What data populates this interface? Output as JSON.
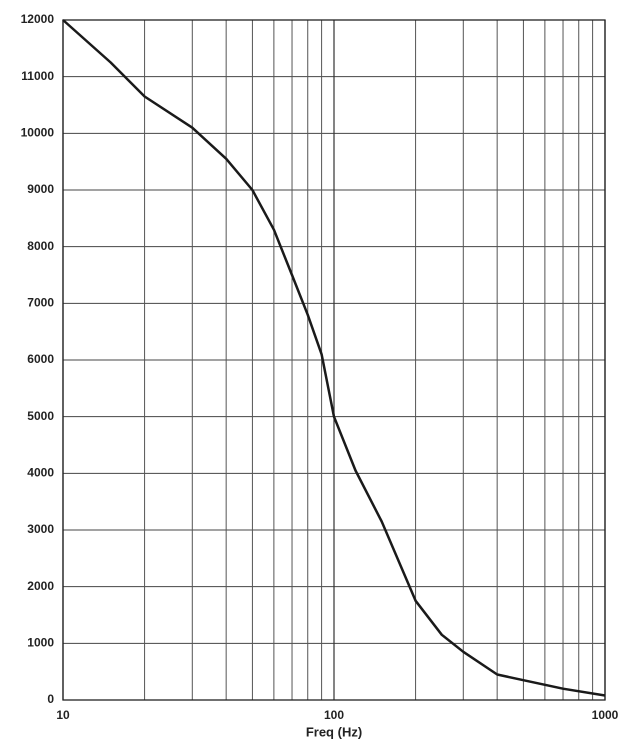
{
  "chart_data": {
    "type": "line",
    "xlabel": "Freq (Hz)",
    "x": [
      10,
      15,
      20,
      30,
      40,
      50,
      60,
      70,
      80,
      90,
      100,
      120,
      150,
      200,
      250,
      300,
      400,
      500,
      700,
      1000
    ],
    "series": [
      {
        "color": "#1a1a1a",
        "values": [
          12000,
          11250,
          10650,
          10100,
          9550,
          9000,
          8300,
          7500,
          6800,
          6100,
          5000,
          4050,
          3150,
          1750,
          1150,
          850,
          450,
          350,
          200,
          80
        ]
      }
    ],
    "xscale": "log",
    "xlim": [
      10,
      1000
    ],
    "xticks": [
      10,
      100,
      1000
    ],
    "xgrid": [
      20,
      30,
      40,
      50,
      60,
      70,
      80,
      90,
      200,
      300,
      400,
      500,
      600,
      700,
      800,
      900
    ],
    "ylim": [
      0,
      12000
    ],
    "yticks": [
      0,
      1000,
      2000,
      3000,
      4000,
      5000,
      6000,
      7000,
      8000,
      9000,
      10000,
      11000,
      12000
    ],
    "grid": true
  }
}
